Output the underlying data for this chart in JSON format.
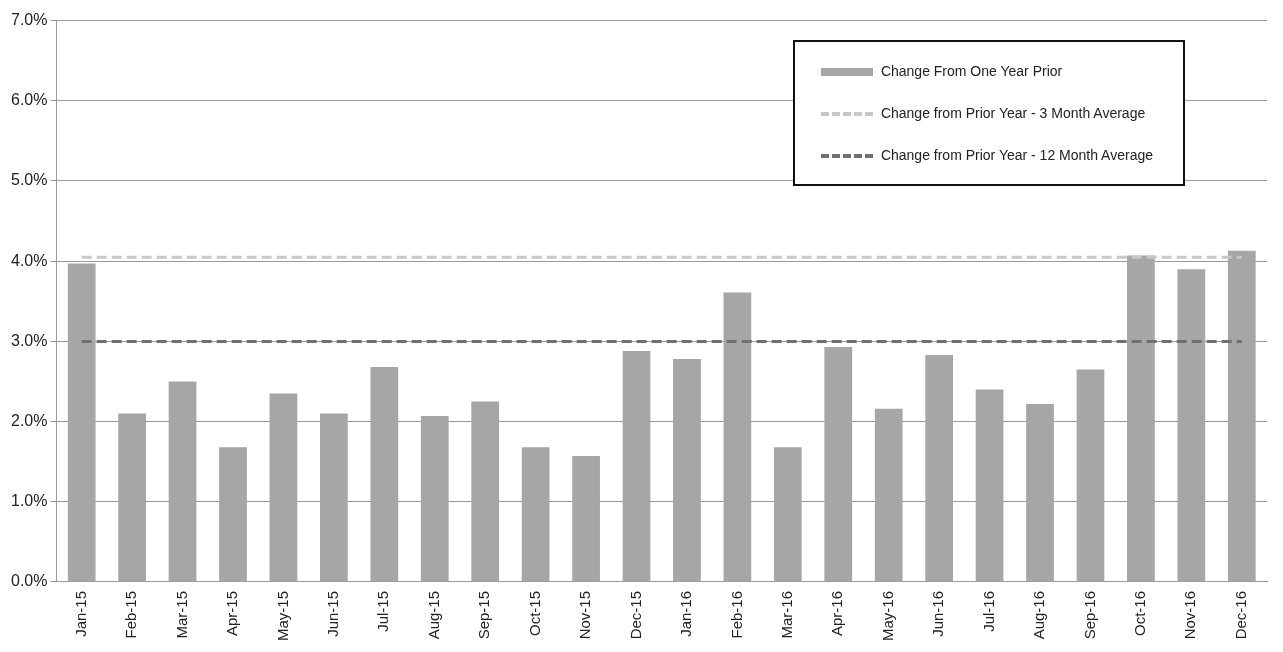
{
  "chart_data": {
    "type": "bar",
    "categories": [
      "Jan-15",
      "Feb-15",
      "Mar-15",
      "Apr-15",
      "May-15",
      "Jun-15",
      "Jul-15",
      "Aug-15",
      "Sep-15",
      "Oct-15",
      "Nov-15",
      "Dec-15",
      "Jan-16",
      "Feb-16",
      "Mar-16",
      "Apr-16",
      "May-16",
      "Jun-16",
      "Jul-16",
      "Aug-16",
      "Sep-16",
      "Oct-16",
      "Nov-16",
      "Dec-16"
    ],
    "series": [
      {
        "name": "Change From One Year Prior",
        "color": "#a6a6a6",
        "values": [
          3.97,
          2.1,
          2.5,
          1.68,
          2.35,
          2.1,
          2.68,
          2.07,
          2.25,
          1.68,
          1.57,
          2.88,
          2.78,
          3.61,
          1.68,
          2.93,
          2.16,
          2.83,
          2.4,
          2.22,
          2.65,
          4.07,
          3.9,
          4.13
        ]
      },
      {
        "name": "Change from Prior Year - 3 Month Average",
        "type": "line",
        "line_style": "dashed",
        "color": "#c8c8c8",
        "values": [
          4.05,
          4.05,
          4.05,
          4.05,
          4.05,
          4.05,
          4.05,
          4.05,
          4.05,
          4.05,
          4.05,
          4.05,
          4.05,
          4.05,
          4.05,
          4.05,
          4.05,
          4.05,
          4.05,
          4.05,
          4.05,
          4.05,
          4.05,
          4.05
        ]
      },
      {
        "name": "Change from Prior Year - 12 Month Average",
        "type": "line",
        "line_style": "dashed",
        "color": "#707070",
        "values": [
          3.0,
          3.0,
          3.0,
          3.0,
          3.0,
          3.0,
          3.0,
          3.0,
          3.0,
          3.0,
          3.0,
          3.0,
          3.0,
          3.0,
          3.0,
          3.0,
          3.0,
          3.0,
          3.0,
          3.0,
          3.0,
          3.0,
          3.0,
          3.0
        ]
      }
    ],
    "ylim": [
      0,
      7
    ],
    "yticks": [
      {
        "value": 0,
        "label": "0.0%"
      },
      {
        "value": 1,
        "label": "1.0%"
      },
      {
        "value": 2,
        "label": "2.0%"
      },
      {
        "value": 3,
        "label": "3.0%"
      },
      {
        "value": 4,
        "label": "4.0%"
      },
      {
        "value": 5,
        "label": "5.0%"
      },
      {
        "value": 6,
        "label": "6.0%"
      },
      {
        "value": 7,
        "label": "7.0%"
      }
    ],
    "grid": "y",
    "legend": "top right",
    "marker": "none"
  }
}
